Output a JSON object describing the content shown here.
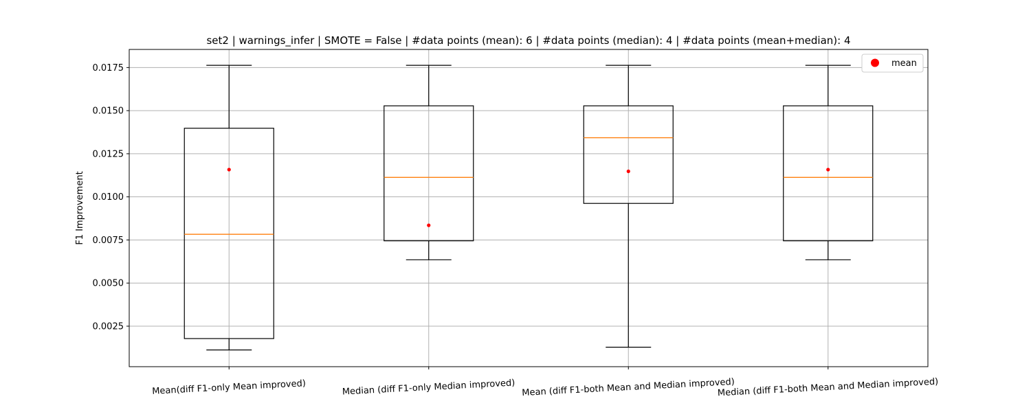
{
  "chart_data": {
    "type": "box",
    "title": "set2 | warnings_infer | SMOTE = False | #data points (mean): 6 | #data points (median): 4 | #data points (mean+median): 4",
    "xlabel": "",
    "ylabel": "F1 Improvement",
    "ylim": [
      0.00015,
      0.01855
    ],
    "yticks": [
      0.0025,
      0.005,
      0.0075,
      0.01,
      0.0125,
      0.015,
      0.0175
    ],
    "ytick_labels": [
      "0.0025",
      "0.0050",
      "0.0075",
      "0.0100",
      "0.0125",
      "0.0150",
      "0.0175"
    ],
    "grid": true,
    "legend": {
      "placement": "top-right",
      "entries": [
        "mean"
      ]
    },
    "categories": [
      "Mean(diff F1-only Mean improved)",
      "Median (diff F1-only Median improved)",
      "Mean (diff F1-both Mean and Median improved)",
      "Median (diff F1-both Mean and Median improved)"
    ],
    "boxes": [
      {
        "whisker_low": 0.00112,
        "q1": 0.00178,
        "median": 0.00783,
        "q3": 0.01398,
        "whisker_high": 0.01763,
        "mean": 0.01158
      },
      {
        "whisker_low": 0.00635,
        "q1": 0.00745,
        "median": 0.01113,
        "q3": 0.01528,
        "whisker_high": 0.01763,
        "mean": 0.00835
      },
      {
        "whisker_low": 0.00128,
        "q1": 0.00962,
        "median": 0.01343,
        "q3": 0.01528,
        "whisker_high": 0.01763,
        "mean": 0.01148
      },
      {
        "whisker_low": 0.00635,
        "q1": 0.00745,
        "median": 0.01113,
        "q3": 0.01528,
        "whisker_high": 0.01763,
        "mean": 0.01158
      }
    ],
    "colors": {
      "box": "#000000",
      "median": "#ff7f0e",
      "mean": "#ff0000",
      "grid": "#b0b0b0"
    }
  }
}
